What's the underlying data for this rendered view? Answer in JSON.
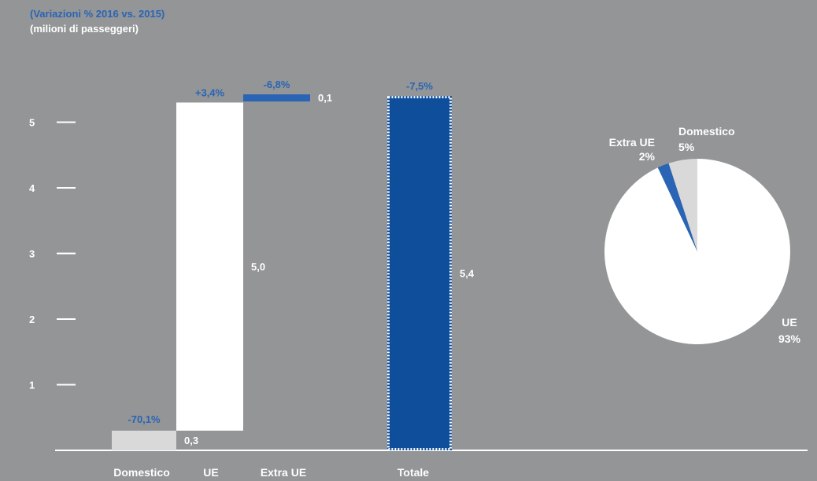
{
  "header": {
    "line1": "(Variazioni % 2016 vs. 2015)",
    "line2": "(milioni di passeggeri)"
  },
  "colors": {
    "background": "#939597",
    "ue": "#ffffff",
    "domestico": "#d9d9d9",
    "extra_ue": "#2a64b4",
    "totale": "#0e4e9a",
    "change_label": "#2a64b4"
  },
  "chart_data": [
    {
      "type": "bar",
      "subtype": "waterfall",
      "categories": [
        "Domestico",
        "UE",
        "Extra UE",
        "Totale"
      ],
      "values": [
        0.3,
        5.0,
        0.1,
        5.4
      ],
      "value_labels": [
        "0,3",
        "5,0",
        "0,1",
        "5,4"
      ],
      "change_labels": [
        "-70,1%",
        "+3,4%",
        "-6,8%",
        "-7,5%"
      ],
      "y_ticks": [
        "1",
        "2",
        "3",
        "4",
        "5"
      ],
      "ylim": [
        0,
        5.6
      ],
      "title": "",
      "xlabel": "",
      "ylabel": "",
      "grid": false
    },
    {
      "type": "pie",
      "slices": [
        {
          "name": "UE",
          "value": 93,
          "label": "93%"
        },
        {
          "name": "Extra UE",
          "value": 2,
          "label": "2%"
        },
        {
          "name": "Domestico",
          "value": 5,
          "label": "5%"
        }
      ]
    }
  ]
}
